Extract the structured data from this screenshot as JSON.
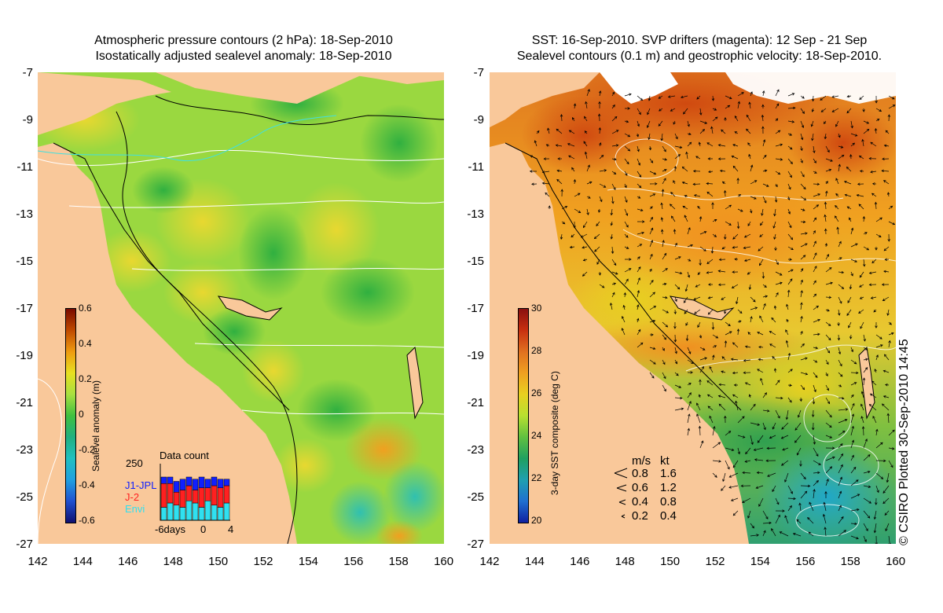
{
  "left_panel": {
    "title_line1": "Atmospheric pressure contours (2 hPa): 18-Sep-2010",
    "title_line2": "Isostatically adjusted sealevel anomaly: 18-Sep-2010",
    "colorbar": {
      "label": "Sealevel anomaly (m)",
      "ticks": [
        "0.6",
        "0.4",
        "0.2",
        "0",
        "-0.2",
        "-0.4",
        "-0.6"
      ],
      "colors": [
        "#7a0a00",
        "#c04a00",
        "#ee9b10",
        "#e8e020",
        "#a8e040",
        "#40c040",
        "#20b080",
        "#20c0c0",
        "#20a0e0",
        "#2050d0",
        "#101070"
      ]
    },
    "data_count": {
      "title": "Data count",
      "ymax": "250",
      "series": [
        {
          "name": "J1-JPL",
          "color": "#1020ff"
        },
        {
          "name": "J-2",
          "color": "#ff2020"
        },
        {
          "name": "Envi",
          "color": "#30e0f0"
        }
      ],
      "x_labels": [
        "-6days",
        "0",
        "4"
      ],
      "bars": [
        {
          "envi": 0.3,
          "j2": 0.55,
          "j1": 0.15
        },
        {
          "envi": 0.4,
          "j2": 0.45,
          "j1": 0.15
        },
        {
          "envi": 0.35,
          "j2": 0.3,
          "j1": 0.25
        },
        {
          "envi": 0.3,
          "j2": 0.4,
          "j1": 0.25
        },
        {
          "envi": 0.45,
          "j2": 0.35,
          "j1": 0.2
        },
        {
          "envi": 0.4,
          "j2": 0.3,
          "j1": 0.25
        },
        {
          "envi": 0.3,
          "j2": 0.45,
          "j1": 0.25
        },
        {
          "envi": 0.45,
          "j2": 0.3,
          "j1": 0.2
        },
        {
          "envi": 0.35,
          "j2": 0.45,
          "j1": 0.2
        },
        {
          "envi": 0.3,
          "j2": 0.45,
          "j1": 0.2
        },
        {
          "envi": 0.4,
          "j2": 0.4,
          "j1": 0.15
        }
      ]
    }
  },
  "right_panel": {
    "title_line1": "SST: 16-Sep-2010. SVP drifters (magenta): 12 Sep - 21 Sep",
    "title_line2": "Sealevel contours (0.1 m) and geostrophic velocity: 18-Sep-2010.",
    "colorbar": {
      "label": "3-day SST composite (deg C)",
      "ticks": [
        "30",
        "28",
        "26",
        "24",
        "22",
        "20"
      ],
      "colors": [
        "#8a1010",
        "#c83010",
        "#e07020",
        "#f0a020",
        "#e8d020",
        "#b8e030",
        "#60c040",
        "#20a060",
        "#20a0b0",
        "#2070d0",
        "#1020a0"
      ]
    },
    "velocity_legend": {
      "header_ms": "m/s",
      "header_kt": "kt",
      "rows": [
        {
          "ms": "0.8",
          "kt": "1.6"
        },
        {
          "ms": "0.6",
          "kt": "1.2"
        },
        {
          "ms": "0.4",
          "kt": "0.8"
        },
        {
          "ms": "0.2",
          "kt": "0.4"
        }
      ]
    }
  },
  "axes": {
    "lat_ticks": [
      "-7",
      "-9",
      "-11",
      "-13",
      "-15",
      "-17",
      "-19",
      "-21",
      "-23",
      "-25",
      "-27"
    ],
    "lon_ticks": [
      "142",
      "144",
      "146",
      "148",
      "150",
      "152",
      "154",
      "156",
      "158",
      "160"
    ]
  },
  "credit": "© CSIRO Plotted 30-Sep-2010 14:45",
  "colors": {
    "land": "#f9c89a",
    "cloud_missing": "#ffffff",
    "coastline": "#000000",
    "arrows": "#000000",
    "contours": "#ffffff"
  }
}
